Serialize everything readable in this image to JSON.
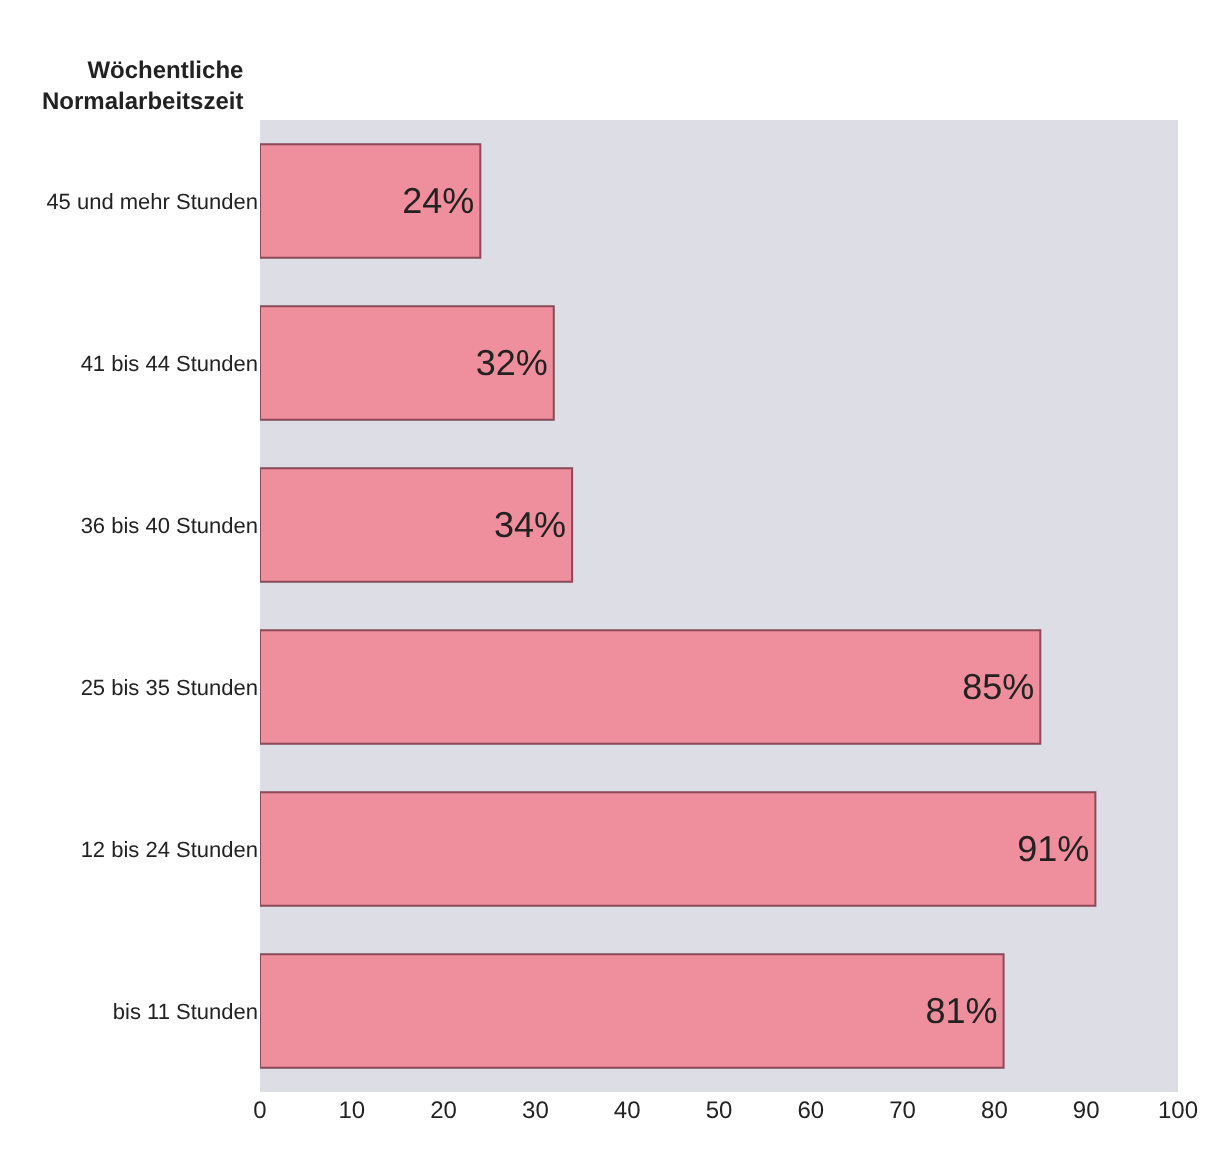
{
  "chart_data": {
    "type": "bar",
    "orientation": "horizontal",
    "ylabel": "Wöchentliche\nNormalarbeitszeit",
    "categories": [
      "45 und mehr Stunden",
      "41 bis 44 Stunden",
      "36 bis 40 Stunden",
      "25 bis 35 Stunden",
      "12 bis 24 Stunden",
      "bis 11 Stunden"
    ],
    "values": [
      24,
      32,
      34,
      85,
      91,
      81
    ],
    "value_labels": [
      "24%",
      "32%",
      "34%",
      "85%",
      "91%",
      "81%"
    ],
    "color": "#ef8f9d",
    "xlim": [
      0,
      100
    ],
    "xticks": [
      0,
      10,
      20,
      30,
      40,
      50,
      60,
      70,
      80,
      90,
      100
    ],
    "grid": false,
    "legend": false
  }
}
